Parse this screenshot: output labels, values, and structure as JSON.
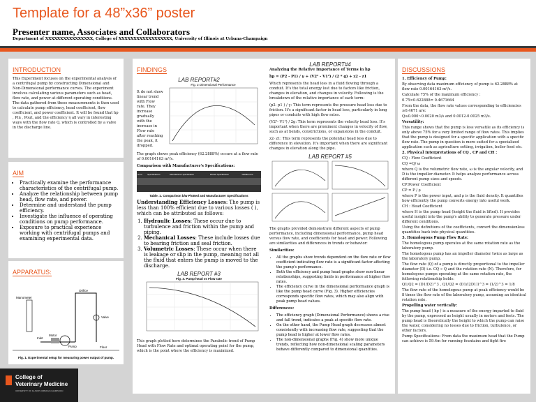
{
  "header": {
    "title": "Template for a 48”x36” poster",
    "authors": "Presenter name, Associates and Collaborators",
    "affiliation": "Department of XXXXXXXXXXXXXXXX, College of XXXXXXXXXXXXXXXXXX, University of Illinois at Urbana-Champaign"
  },
  "introduction": {
    "heading": "INTRODUCTION",
    "text": "This Experiment focuses on the experimental analysis of a centrifugal pump by constructing Dimensional and Non-Dimensional performance curves. The experiment involves calculating various parameters such as head, flow rate, and power at different operating conditions. The data gathered from these measurements is then used to calculate pump efficiency, head coefficient, flow coefficient, and power coefficient. It will be found that hp , Pin , Pout, and the efficiency η all vary in interesting ways with the flow rate Q, which is controlled by a valve in the discharge line."
  },
  "aim": {
    "heading": "AIM",
    "items": [
      "Practically examine the performance characteristics of the centrifugal pump.",
      "Analyze the relationship between pump head, flow rate, and power.",
      "Determine and understand the pump efficiency.",
      "Investigate the influence of operating conditions on pump performance.",
      "Exposure to practical experience working with centrifugal pumps and examining experimental data."
    ]
  },
  "apparatus": {
    "heading": "APPARATUS:",
    "labels": [
      "Orifice",
      "Valve",
      "Pump",
      "Motor",
      "Inlet",
      "Manometer",
      "Floor"
    ],
    "caption": "Fig. 1. Experimental setup for measuring power output of pump."
  },
  "logo": {
    "line1": "College of",
    "line2": "Veterinary Medicine",
    "line3": "UNIVERSITY OF ILLINOIS URBANA-CHAMPAIGN"
  },
  "findings": {
    "heading": "FINDINGS",
    "lab2": "LAB REPORT#2",
    "side_text": "It do not show linear trend with Flow rate. They increase gradually with the increase in Flow rate after reaching the peak, it dropped.",
    "fig2": "Fig. 2 Dimensional Performance",
    "peak": "The graph shows peak efficiency (62.2888%) occurs at a flow rate of 0.00164163 m³/s.",
    "comparison": "Comparison with Manufacturer's Specifications:",
    "table_header": [
      "Sr.no",
      "Specifications",
      "Manufacturer specification",
      "Plotted Specification",
      "%Difference"
    ],
    "table_caption": "Table. 1. Comparison b/w Plotted and Manufacturer Specifications",
    "losses_heading": "Understanding Efficiency Losses",
    "losses_text": ": The pump is less than 100% efficient due to various losses ( ), which can be attributed as follows:",
    "losses": [
      [
        "Hydraulic Losses",
        ": These occur due to turbulence and friction within the pump and piping."
      ],
      [
        "Mechanical Losses",
        ": These include losses due to bearing friction and seal friction."
      ],
      [
        "Volumetric Losses",
        ": These occur when there is leakage or slip in the pump, meaning not all the fluid that enters the pump is moved to the discharge."
      ]
    ],
    "lab3": "LAB REPORT #3",
    "fig3": "Fig. 3. Pump head vs Flow rate",
    "lab3_text": "This graph plotted here determines the Parabolic trend of Pump Head with Flow Rate and optimal operating point for the pump, which is the point where the efficiency is maximized."
  },
  "lab4": {
    "title": "LAB REPORT#4",
    "heading": "Analyzing the Relative Importance of Terms in hp",
    "equation": "hp = (P2 - P1) / γ + (V2² - V1²) / (2 * g) + z2 - z1",
    "paras": [
      "Which represents the head loss in a fluid flowing through a conduit. It's the total energy lost due to factors like friction, changes in elevation, and changes in velocity. Following is the breakdown of the relative importance of each term:",
      "(p2- p1 ) / γ: This term represents the pressure head loss due to friction. It's a significant factor in head loss, particularly in long pipes or conduits with high flow rates.",
      "(V2²- V1²) / 2g: This term represents the velocity head loss. It's important when there are prominent changes in velocity of flow, such as at bends, constrictions, or expansions in the conduit.",
      "z2- z1: This term represents the potential head loss due to difference in elevation. It's important when there are significant changes in elevation along the pipe."
    ],
    "lab5": "LAB REPORT #5",
    "summary": "The graphs provided demonstrate different aspects of pump performance, including dimensional performance, pump head versus flow rate, and coefficients for head and power. Following are similarities and differences in trends or behavior:",
    "similarities": "Similarities:",
    "sim_items": [
      "All the graphs show trends dependent on the flow rate or flow coefficient indicating flow rate is a significant factor affecting the pump's performance.",
      "Both the efficiency and pump head graphs show non-linear relationships, suggesting limits in performance at higher flow rates.",
      "The efficiency curve in the dimensional performance graph is like the pump head curve (Fig. 3). Higher efficiencies corresponds specific flow rates, which may also align with peak pump head values."
    ],
    "differences": "Differences:",
    "diff_items": [
      "The efficiency graph (Dimensional Performance) shows a rise and fall trend, indicates a peak at specific flow rate.",
      "On the other hand, the Pump Head graph decreases almost consistently with increasing flow rate, suggesting that the pump head is higher at lower flow rates.",
      "The non-dimensional graphs (Fig. 4) show more unique trends, reflecting how non-dimensional scaling parameters behave differently compared to dimensional quantities."
    ]
  },
  "discussion": {
    "heading": "DISCUSSIONS",
    "items": [
      [
        "1. Efficiency of Pump:",
        "By observing data maximum efficiency of pump is 62.2888% at flow rate 0.00164163 m³/s.",
        "Calculate 75% of the maximum efficiency :",
        "0.75×0.622888= 0.4671664",
        "From the data, the flow rate values corresponding to efficiencies ≥0.4671 are:",
        "Q≥0.000~0.0020 m3/s and 0.0012-0.0025 m3/s."
      ],
      [
        "Versatility:",
        "This range shows that the pump is less versatile as its efficiency is only above 75% for a very limited range of flow rates. This implies that the pump is designed for a specific application with a specific flow rate. The pump in question is more suited for a specialized application such as agriculture setting, irrigation, boiler feed etc."
      ],
      [
        "2. Physical Interpretations of CQ , CP and CH :",
        "CQ : Flow Coefficient",
        "CQ =Q/ ω",
        "where Q is the volumetric flow rate, ω is the angular velocity, and D is the impeller diameter. It helps analyze performance across different pump sizes and speeds.",
        "CP:Power Coefficient",
        "CP = P / ρ",
        "where P is the power input, and ρ is the fluid density. It quantifies how efficiently the pump converts energy into useful work.",
        "CH : Head Coefficient",
        "where H is the pump head (height the fluid is lifted). It provides useful insight into the pump's ability to generate pressure under different conditions.",
        "Using the definitions of the coefficients, convert the dimensionless quantities back into physical quantities."
      ],
      [
        "3. Homologous Pump Flow Rate:",
        "The homologous pump operates at the same rotation rate as the laboratory pump.",
        "The homologous pump has an impeller diameter twice as large as the laboratory pump.",
        "The flow rate (Q) of a pump is directly proportional to the impeller diameter (D) i.e. CQ ∝ Q and the rotation rate (N). Therefore, for homologous pumps operating at the same rotation rate, the following relationship holds:",
        "Q1/Q2 = (D1/D2)^3 , Q1/Q2 = (D1/(2D1))^3 = (1/2)^3 = 1/8",
        "The flow rate of the homologous pump at peak efficiency would be 8 times the flow rate of the laboratory pump, assuming an identical rotation rate."
      ],
      [
        "Propelling water vertically:",
        "The pump head ( hp ) is a measure of the energy imparted to fluid by the pump, expressed as height usually in meters and feets. The pump head is theoretically the height to which the pump can raise the water, considering no losses due to friction, turbulence, or other factors.",
        "Pump Specifications: From data the maximum head that the Pump can achieve is 59.4m for running fountains and fight fire"
      ]
    ]
  }
}
